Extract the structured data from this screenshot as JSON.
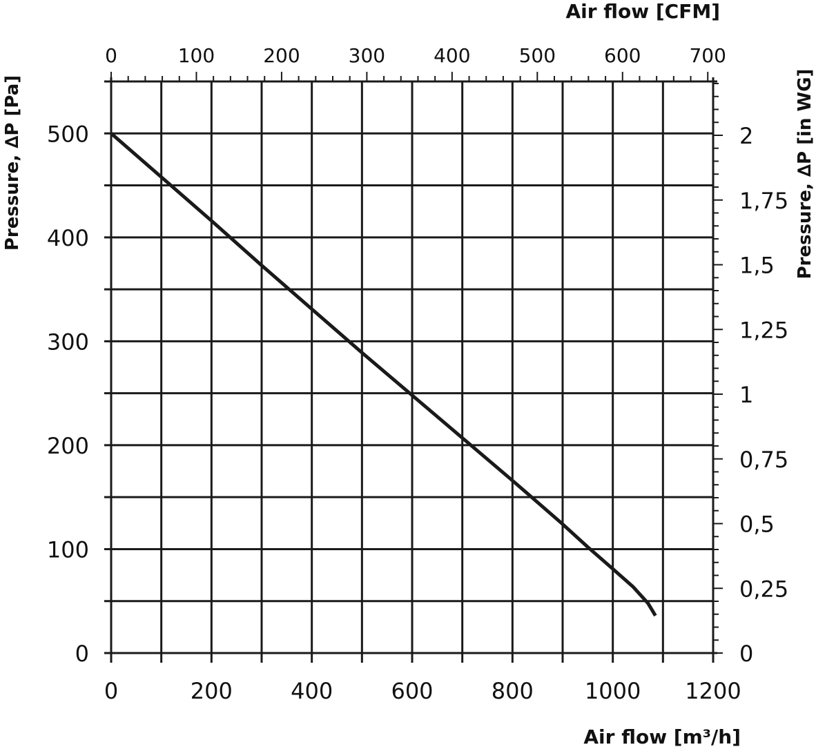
{
  "chart_data": {
    "type": "line",
    "x_bottom": {
      "label": "Air flow [m³/h]",
      "ticks": [
        "0",
        "200",
        "400",
        "600",
        "800",
        "1000",
        "1200"
      ],
      "range": [
        0,
        1200
      ],
      "major_step": 200,
      "grid_step": 100
    },
    "x_top": {
      "label": "Air flow [CFM]",
      "ticks": [
        "0",
        "100",
        "200",
        "300",
        "400",
        "500",
        "600",
        "700"
      ],
      "range": [
        0,
        706.3
      ],
      "major_step": 100,
      "minor_step": 20
    },
    "y_left": {
      "label": "Pressure, ∆P [Pa]",
      "ticks": [
        "0",
        "100",
        "200",
        "300",
        "400",
        "500"
      ],
      "range": [
        0,
        550
      ],
      "major_step": 100,
      "grid_step": 50
    },
    "y_right": {
      "label": "Pressure, ∆P [in WG]",
      "ticks": [
        "0",
        "0,25",
        "0,5",
        "0,75",
        "1",
        "1,25",
        "1,5",
        "1,75",
        "2"
      ],
      "range": [
        0,
        2.208
      ],
      "major_step": 0.25,
      "minor_step": 0.05
    },
    "grid": true,
    "series": [
      {
        "x": [
          0,
          100,
          200,
          300,
          400,
          500,
          600,
          700,
          800,
          900,
          950,
          1000,
          1040,
          1070,
          1085
        ],
        "y": [
          500,
          458,
          416,
          373,
          331,
          289,
          248,
          207,
          166,
          124,
          102,
          81,
          64,
          48,
          36
        ]
      }
    ]
  }
}
